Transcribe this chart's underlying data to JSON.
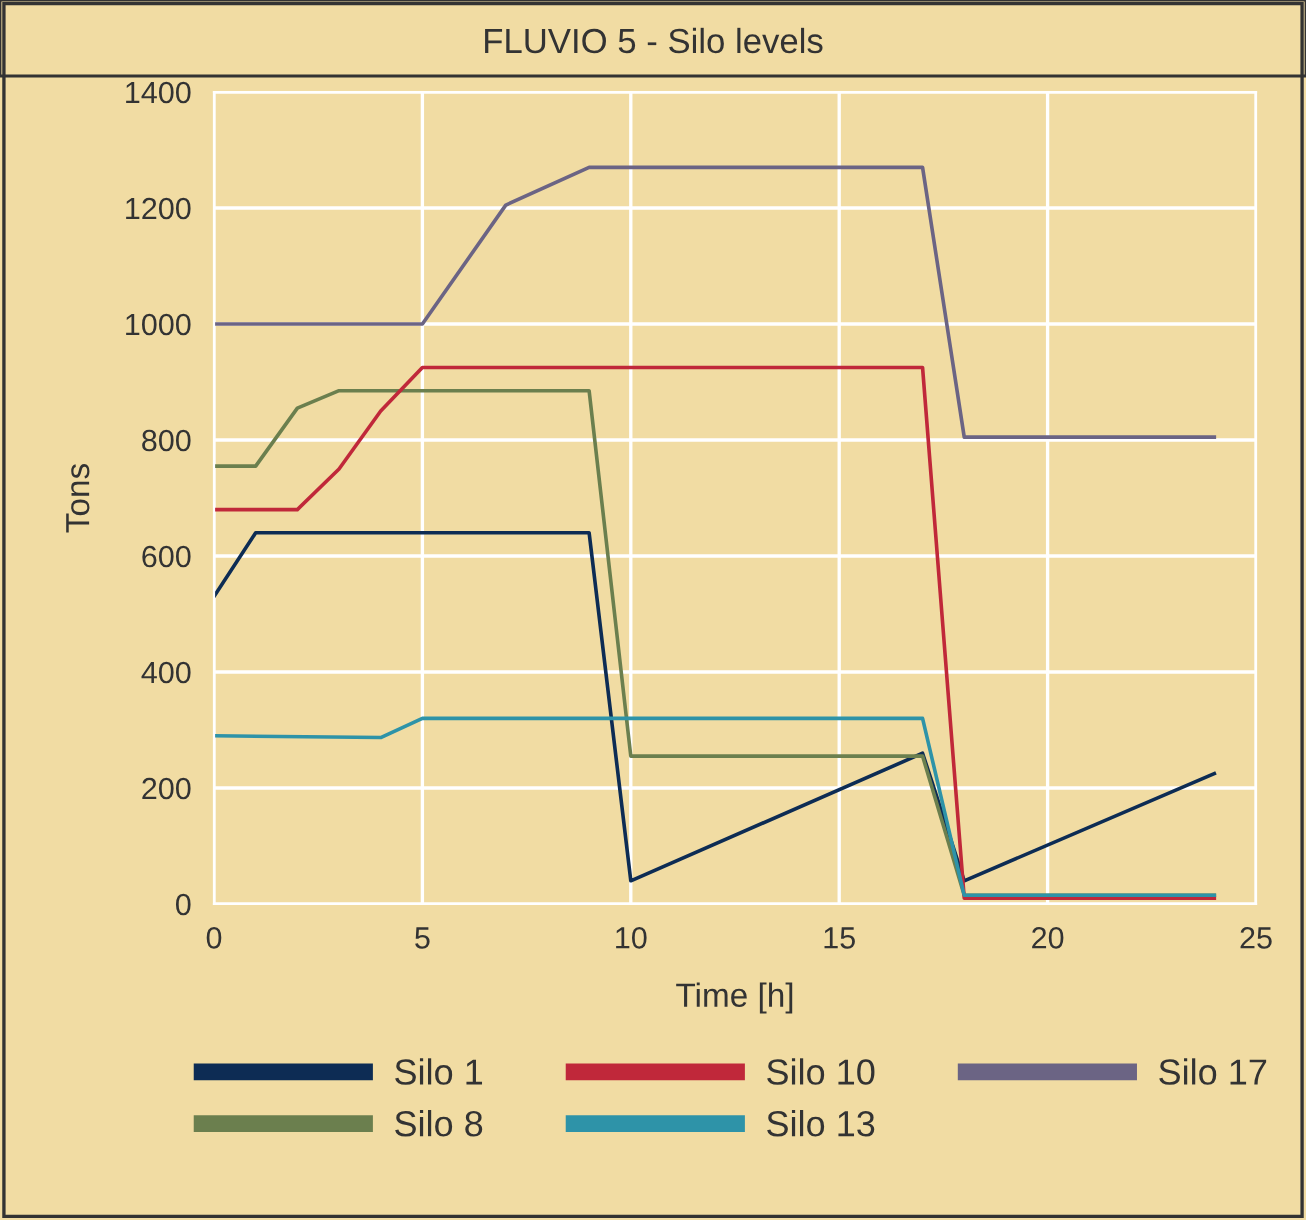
{
  "chart_data": {
    "type": "line",
    "title": "FLUVIO 5 - Silo levels",
    "xlabel": "Time [h]",
    "ylabel": "Tons",
    "xlim": [
      0,
      25
    ],
    "xticks": [
      0,
      5,
      10,
      15,
      20,
      25
    ],
    "ylim": [
      0,
      1400
    ],
    "yticks": [
      0,
      200,
      400,
      600,
      800,
      1000,
      1200,
      1400
    ],
    "grid": true,
    "legend": "bottom",
    "marker": "none",
    "line_style": "solid",
    "series": [
      {
        "name": "Silo 1",
        "color": "#0d2c54",
        "x": [
          0,
          1,
          9,
          10,
          17,
          18,
          24
        ],
        "values": [
          530,
          640,
          640,
          40,
          260,
          40,
          225
        ]
      },
      {
        "name": "Silo 8",
        "color": "#6b7f4e",
        "x": [
          0,
          1,
          2,
          3,
          9,
          10,
          17,
          18,
          24
        ],
        "values": [
          755,
          755,
          855,
          885,
          885,
          255,
          255,
          15,
          15
        ]
      },
      {
        "name": "Silo 10",
        "color": "#c0283a",
        "x": [
          0,
          2,
          3,
          4,
          5,
          17,
          18,
          24
        ],
        "values": [
          680,
          680,
          750,
          850,
          925,
          925,
          10,
          10
        ]
      },
      {
        "name": "Silo 13",
        "color": "#2e93a8",
        "x": [
          0,
          4,
          5,
          17,
          18,
          24
        ],
        "values": [
          290,
          287,
          320,
          320,
          15,
          15
        ]
      },
      {
        "name": "Silo 17",
        "color": "#6b6484",
        "x": [
          0,
          5,
          7,
          9,
          17,
          18,
          24
        ],
        "values": [
          1000,
          1000,
          1205,
          1270,
          1270,
          805,
          805
        ]
      }
    ]
  }
}
